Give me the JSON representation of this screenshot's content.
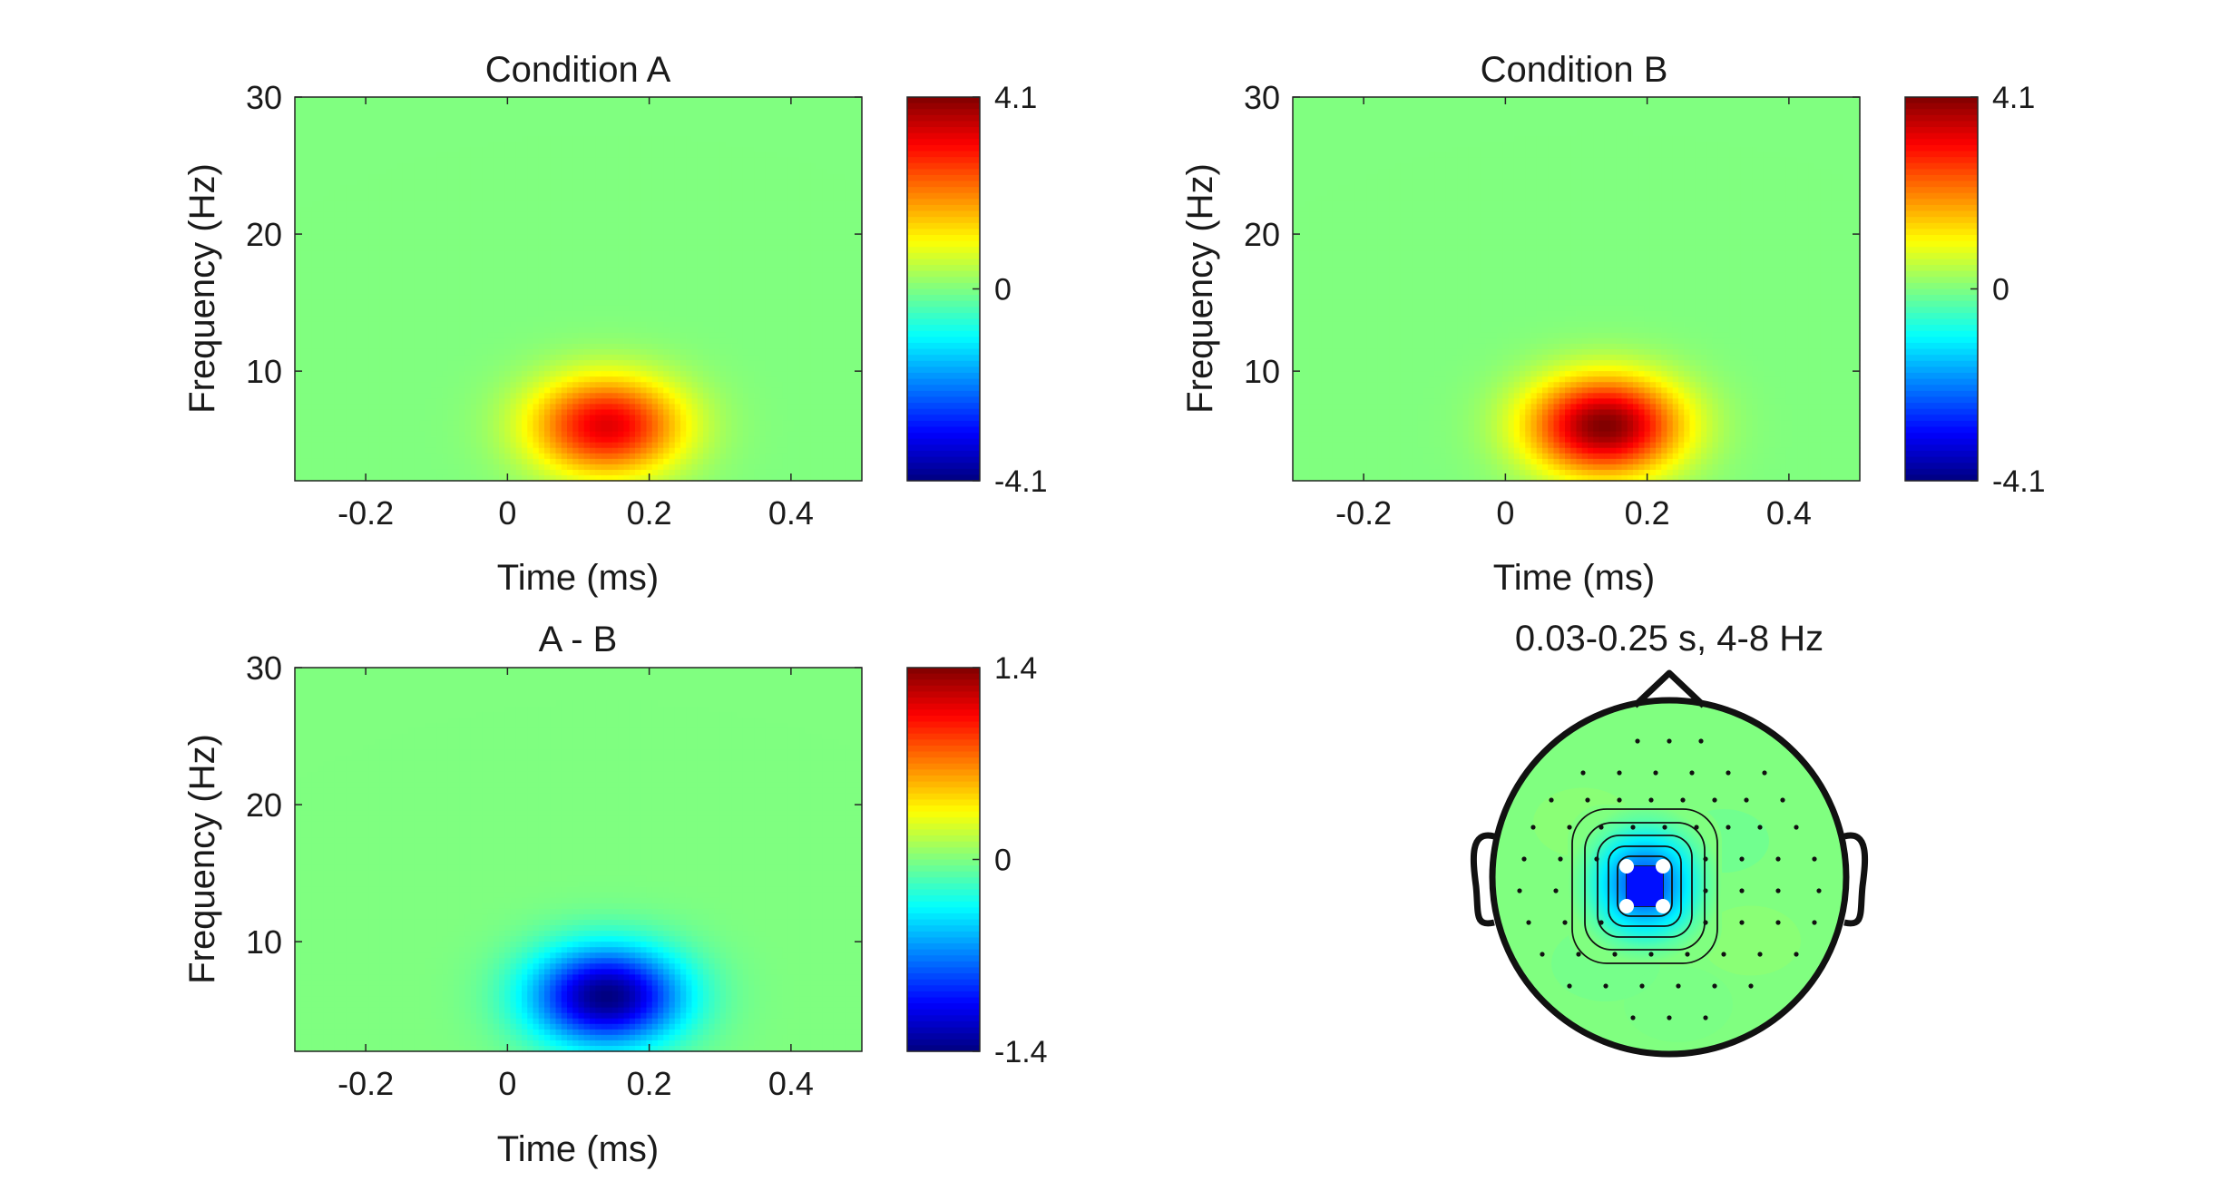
{
  "figure": {
    "background": "#ffffff",
    "colormap": "jet"
  },
  "chart_data": [
    {
      "type": "heatmap",
      "title": "Condition A",
      "xlabel": "Time (ms)",
      "ylabel": "Frequency (Hz)",
      "xlim": [
        -0.3,
        0.5
      ],
      "ylim": [
        2,
        30
      ],
      "xticks": [
        "-0.2",
        "0",
        "0.2",
        "0.4"
      ],
      "yticks": [
        "10",
        "20",
        "30"
      ],
      "clim": [
        -4.1,
        4.1
      ],
      "colorbar_ticks": [
        "4.1",
        "0",
        "-4.1"
      ],
      "blob": {
        "time_center": 0.14,
        "freq_center": 6,
        "time_sigma": 0.075,
        "freq_sigma": 2.5,
        "peak": 3.3
      }
    },
    {
      "type": "heatmap",
      "title": "Condition B",
      "xlabel": "Time (ms)",
      "ylabel": "Frequency (Hz)",
      "xlim": [
        -0.3,
        0.5
      ],
      "ylim": [
        2,
        30
      ],
      "xticks": [
        "-0.2",
        "0",
        "0.2",
        "0.4"
      ],
      "yticks": [
        "10",
        "20",
        "30"
      ],
      "clim": [
        -4.1,
        4.1
      ],
      "colorbar_ticks": [
        "4.1",
        "0",
        "-4.1"
      ],
      "blob": {
        "time_center": 0.14,
        "freq_center": 6,
        "time_sigma": 0.075,
        "freq_sigma": 2.5,
        "peak": 4.1
      }
    },
    {
      "type": "heatmap",
      "title": "A - B",
      "xlabel": "Time (ms)",
      "ylabel": "Frequency (Hz)",
      "xlim": [
        -0.3,
        0.5
      ],
      "ylim": [
        2,
        30
      ],
      "xticks": [
        "-0.2",
        "0",
        "0.2",
        "0.4"
      ],
      "yticks": [
        "10",
        "20",
        "30"
      ],
      "clim": [
        -1.4,
        1.4
      ],
      "colorbar_ticks": [
        "1.4",
        "0",
        "-1.4"
      ],
      "blob": {
        "time_center": 0.14,
        "freq_center": 6,
        "time_sigma": 0.075,
        "freq_sigma": 2.5,
        "peak": -1.4
      }
    },
    {
      "type": "topoplot",
      "title": "0.03-0.25 s, 4-8 Hz",
      "highlighted_channels": 4
    }
  ]
}
